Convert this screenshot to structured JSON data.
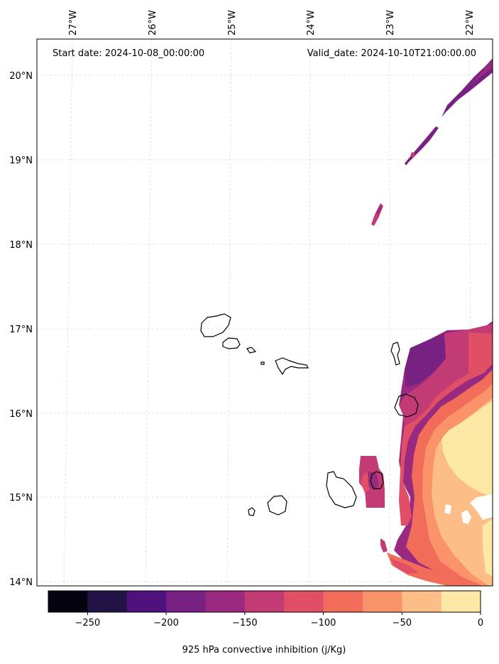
{
  "map": {
    "start_label": "Start date: 2024-10-08_00:00:00",
    "valid_label": "Valid_date: 2024-10-10T21:00:00.00",
    "lon_ticks": [
      "27°W",
      "26°W",
      "25°W",
      "24°W",
      "23°W",
      "22°W"
    ],
    "lat_ticks": [
      "20°N",
      "19°N",
      "18°N",
      "17°N",
      "16°N",
      "15°N",
      "14°N"
    ],
    "gridlines": true,
    "field": "925 hPa convective inhibition",
    "unit": "j/Kg"
  },
  "colorbar": {
    "label": "925 hPa convective inhibition (j/Kg)",
    "levels": [
      -275,
      -250,
      -225,
      -200,
      -175,
      -150,
      -125,
      -100,
      -75,
      -50,
      -25,
      0
    ],
    "tick_labels": [
      "−250",
      "−200",
      "−150",
      "−100",
      "−50",
      "0"
    ],
    "colors": [
      "#05030f",
      "#211346",
      "#4f117b",
      "#772183",
      "#9a2a80",
      "#c23b75",
      "#e04f65",
      "#f26c5a",
      "#fa9369",
      "#fdbd86",
      "#fde8a6"
    ]
  }
}
